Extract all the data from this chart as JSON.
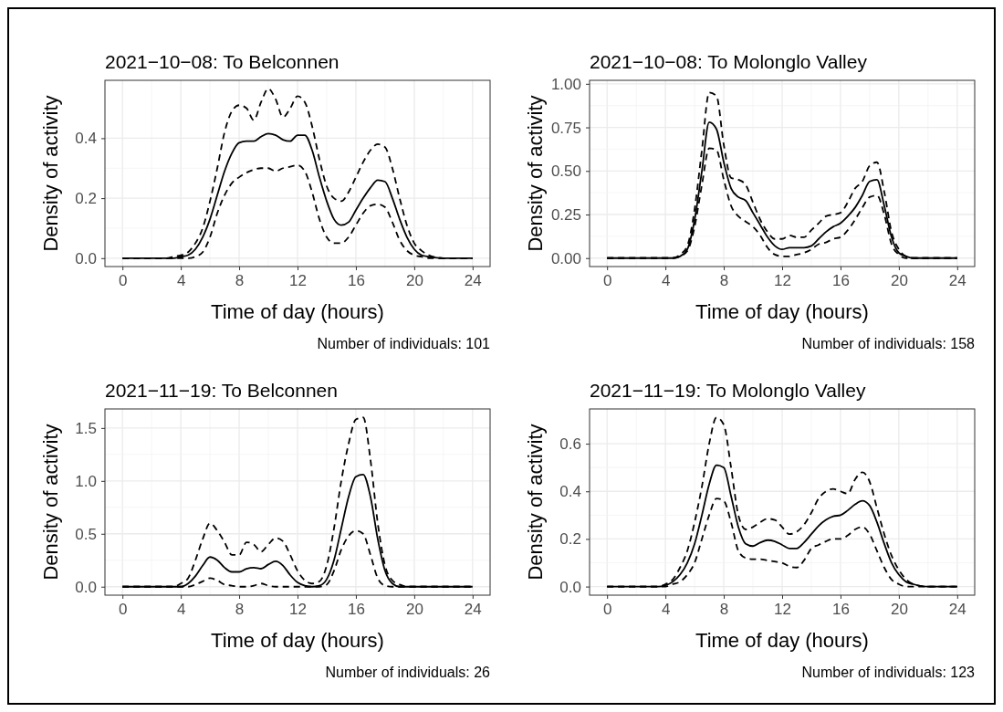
{
  "chart_data": [
    {
      "type": "line",
      "title": "2021−10−08: To Belconnen",
      "xlabel": "Time of day (hours)",
      "ylabel": "Density of activity",
      "annotations": [
        "Number of individuals: 101"
      ],
      "grid": true,
      "xlim": [
        -1.2,
        25.2
      ],
      "xticks": [
        0,
        4,
        8,
        12,
        16,
        20,
        24
      ],
      "ylim": [
        -0.028,
        0.593
      ],
      "yticks": [
        {
          "value": 0,
          "label": "0.0"
        },
        {
          "value": 0.2,
          "label": "0.2"
        },
        {
          "value": 0.4,
          "label": "0.4"
        }
      ],
      "x": [
        0,
        1,
        2,
        3,
        3.5,
        4,
        4.5,
        5,
        5.5,
        6,
        6.5,
        7,
        7.5,
        8,
        8.5,
        9,
        9.5,
        10,
        10.5,
        11,
        11.5,
        12,
        12.5,
        13,
        13.5,
        14,
        14.5,
        15,
        15.5,
        16,
        16.5,
        17,
        17.5,
        18,
        18.5,
        19,
        19.5,
        20,
        20.5,
        21,
        22,
        23,
        24
      ],
      "series": [
        {
          "color": "#000000",
          "line_style": "solid",
          "values": [
            0,
            0,
            0,
            0,
            0,
            0.005,
            0.01,
            0.03,
            0.07,
            0.13,
            0.21,
            0.29,
            0.35,
            0.385,
            0.39,
            0.39,
            0.405,
            0.415,
            0.41,
            0.395,
            0.39,
            0.41,
            0.41,
            0.36,
            0.27,
            0.19,
            0.13,
            0.11,
            0.12,
            0.16,
            0.2,
            0.235,
            0.26,
            0.255,
            0.2,
            0.13,
            0.07,
            0.03,
            0.01,
            0.005,
            0,
            0,
            0
          ]
        },
        {
          "color": "#000000",
          "line_style": "dashed",
          "values": [
            0,
            0,
            0,
            0,
            0.005,
            0.01,
            0.02,
            0.05,
            0.1,
            0.19,
            0.3,
            0.42,
            0.49,
            0.51,
            0.5,
            0.46,
            0.52,
            0.565,
            0.53,
            0.47,
            0.5,
            0.54,
            0.52,
            0.44,
            0.33,
            0.24,
            0.2,
            0.19,
            0.22,
            0.27,
            0.32,
            0.36,
            0.38,
            0.37,
            0.3,
            0.2,
            0.11,
            0.05,
            0.025,
            0.01,
            0,
            0,
            0
          ]
        },
        {
          "color": "#000000",
          "line_style": "dashed",
          "values": [
            0,
            0,
            0,
            0,
            0,
            0,
            0,
            0.005,
            0.02,
            0.07,
            0.15,
            0.21,
            0.25,
            0.27,
            0.285,
            0.295,
            0.3,
            0.3,
            0.29,
            0.3,
            0.305,
            0.31,
            0.29,
            0.22,
            0.13,
            0.07,
            0.05,
            0.05,
            0.07,
            0.11,
            0.15,
            0.175,
            0.18,
            0.17,
            0.12,
            0.06,
            0.025,
            0.01,
            0.005,
            0,
            0,
            0,
            0
          ]
        }
      ]
    },
    {
      "type": "line",
      "title": "2021−10−08: To Molonglo Valley",
      "xlabel": "Time of day (hours)",
      "ylabel": "Density of activity",
      "annotations": [
        "Number of individuals: 158"
      ],
      "grid": true,
      "xlim": [
        -1.2,
        25.2
      ],
      "xticks": [
        0,
        4,
        8,
        12,
        16,
        20,
        24
      ],
      "ylim": [
        -0.0485,
        1.02
      ],
      "yticks": [
        {
          "value": 0,
          "label": "0.00"
        },
        {
          "value": 0.25,
          "label": "0.25"
        },
        {
          "value": 0.5,
          "label": "0.50"
        },
        {
          "value": 0.75,
          "label": "0.75"
        },
        {
          "value": 1,
          "label": "1.00"
        }
      ],
      "x": [
        0,
        1,
        2,
        3,
        3.5,
        4,
        4.5,
        5,
        5.5,
        6,
        6.5,
        7,
        7.5,
        8,
        8.5,
        9,
        9.5,
        10,
        10.5,
        11,
        11.5,
        12,
        12.5,
        13,
        13.5,
        14,
        14.5,
        15,
        15.5,
        16,
        16.5,
        17,
        17.5,
        18,
        18.5,
        19,
        19.5,
        20,
        20.5,
        21,
        22,
        23,
        24
      ],
      "series": [
        {
          "color": "#000000",
          "line_style": "solid",
          "values": [
            0,
            0,
            0,
            0,
            0,
            0,
            0,
            0.01,
            0.05,
            0.22,
            0.5,
            0.78,
            0.74,
            0.55,
            0.4,
            0.35,
            0.33,
            0.26,
            0.19,
            0.12,
            0.07,
            0.05,
            0.06,
            0.06,
            0.06,
            0.07,
            0.11,
            0.15,
            0.18,
            0.2,
            0.24,
            0.29,
            0.36,
            0.44,
            0.45,
            0.3,
            0.12,
            0.03,
            0.01,
            0,
            0,
            0,
            0
          ]
        },
        {
          "color": "#000000",
          "line_style": "dashed",
          "values": [
            0,
            0,
            0,
            0,
            0,
            0,
            0,
            0.02,
            0.07,
            0.28,
            0.62,
            0.95,
            0.93,
            0.65,
            0.46,
            0.45,
            0.42,
            0.32,
            0.22,
            0.15,
            0.11,
            0.11,
            0.13,
            0.12,
            0.12,
            0.16,
            0.2,
            0.24,
            0.25,
            0.26,
            0.32,
            0.4,
            0.44,
            0.53,
            0.55,
            0.38,
            0.15,
            0.05,
            0.01,
            0,
            0,
            0,
            0
          ]
        },
        {
          "color": "#000000",
          "line_style": "dashed",
          "values": [
            0,
            0,
            0,
            0,
            0,
            0,
            0,
            0.01,
            0.04,
            0.18,
            0.42,
            0.63,
            0.62,
            0.45,
            0.3,
            0.24,
            0.21,
            0.18,
            0.13,
            0.06,
            0.02,
            0.01,
            0.01,
            0.02,
            0.03,
            0.05,
            0.08,
            0.09,
            0.11,
            0.12,
            0.16,
            0.22,
            0.29,
            0.35,
            0.36,
            0.25,
            0.08,
            0.02,
            0,
            0,
            0,
            0,
            0
          ]
        }
      ]
    },
    {
      "type": "line",
      "title": "2021−11−19: To Belconnen",
      "xlabel": "Time of day (hours)",
      "ylabel": "Density of activity",
      "annotations": [
        "Number of individuals: 26"
      ],
      "grid": true,
      "xlim": [
        -1.2,
        25.2
      ],
      "xticks": [
        0,
        4,
        8,
        12,
        16,
        20,
        24
      ],
      "ylim": [
        -0.08,
        1.68
      ],
      "yticks": [
        {
          "value": 0,
          "label": "0.0"
        },
        {
          "value": 0.5,
          "label": "0.5"
        },
        {
          "value": 1,
          "label": "1.0"
        },
        {
          "value": 1.5,
          "label": "1.5"
        }
      ],
      "x": [
        0,
        1,
        2,
        3,
        3.5,
        4,
        4.5,
        5,
        5.5,
        6,
        6.5,
        7,
        7.5,
        8,
        8.5,
        9,
        9.5,
        10,
        10.5,
        11,
        11.5,
        12,
        12.5,
        13,
        13.5,
        14,
        14.5,
        15,
        15.5,
        16,
        16.5,
        17,
        17.5,
        18,
        18.5,
        19,
        19.5,
        20,
        20.5,
        21,
        22,
        23,
        24
      ],
      "series": [
        {
          "color": "#000000",
          "line_style": "solid",
          "values": [
            0,
            0,
            0,
            0,
            0,
            0,
            0.03,
            0.1,
            0.2,
            0.28,
            0.25,
            0.18,
            0.14,
            0.14,
            0.17,
            0.18,
            0.17,
            0.21,
            0.24,
            0.2,
            0.11,
            0.04,
            0.01,
            0,
            0.01,
            0.07,
            0.25,
            0.55,
            0.85,
            1.04,
            1.06,
            0.85,
            0.45,
            0.15,
            0.03,
            0,
            0,
            0,
            0,
            0,
            0,
            0,
            0
          ]
        },
        {
          "color": "#000000",
          "line_style": "dashed",
          "values": [
            0,
            0,
            0,
            0,
            0,
            0.03,
            0.08,
            0.25,
            0.45,
            0.6,
            0.53,
            0.42,
            0.3,
            0.3,
            0.42,
            0.4,
            0.33,
            0.4,
            0.46,
            0.43,
            0.3,
            0.15,
            0.06,
            0.03,
            0.05,
            0.2,
            0.55,
            1.0,
            1.35,
            1.58,
            1.6,
            1.2,
            0.6,
            0.2,
            0.06,
            0.02,
            0,
            0,
            0,
            0,
            0,
            0,
            0
          ]
        },
        {
          "color": "#000000",
          "line_style": "dashed",
          "values": [
            0,
            0,
            0,
            0,
            0,
            0,
            0,
            0.02,
            0.05,
            0.08,
            0.06,
            0.02,
            0.01,
            0,
            0,
            0.01,
            0.03,
            0.01,
            0,
            0,
            0,
            0,
            0,
            0,
            0,
            0.02,
            0.15,
            0.35,
            0.48,
            0.53,
            0.5,
            0.3,
            0.08,
            0.01,
            0,
            0,
            0,
            0,
            0,
            0,
            0,
            0,
            0
          ]
        }
      ]
    },
    {
      "type": "line",
      "title": "2021−11−19: To Molonglo Valley",
      "xlabel": "Time of day (hours)",
      "ylabel": "Density of activity",
      "annotations": [
        "Number of individuals: 123"
      ],
      "grid": true,
      "xlim": [
        -1.2,
        25.2
      ],
      "xticks": [
        0,
        4,
        8,
        12,
        16,
        20,
        24
      ],
      "ylim": [
        -0.036,
        0.746
      ],
      "yticks": [
        {
          "value": 0,
          "label": "0.0"
        },
        {
          "value": 0.2,
          "label": "0.2"
        },
        {
          "value": 0.4,
          "label": "0.4"
        },
        {
          "value": 0.6,
          "label": "0.6"
        }
      ],
      "x": [
        0,
        1,
        2,
        3,
        3.5,
        4,
        4.5,
        5,
        5.5,
        6,
        6.5,
        7,
        7.5,
        8,
        8.5,
        9,
        9.5,
        10,
        10.5,
        11,
        11.5,
        12,
        12.5,
        13,
        13.5,
        14,
        14.5,
        15,
        15.5,
        16,
        16.5,
        17,
        17.5,
        18,
        18.5,
        19,
        19.5,
        20,
        20.5,
        21,
        22,
        23,
        24
      ],
      "series": [
        {
          "color": "#000000",
          "line_style": "solid",
          "values": [
            0,
            0,
            0,
            0,
            0,
            0.005,
            0.02,
            0.05,
            0.1,
            0.18,
            0.3,
            0.43,
            0.51,
            0.5,
            0.38,
            0.25,
            0.18,
            0.17,
            0.185,
            0.195,
            0.19,
            0.175,
            0.16,
            0.16,
            0.185,
            0.22,
            0.255,
            0.28,
            0.295,
            0.3,
            0.32,
            0.345,
            0.36,
            0.34,
            0.27,
            0.18,
            0.1,
            0.05,
            0.02,
            0.01,
            0,
            0,
            0
          ]
        },
        {
          "color": "#000000",
          "line_style": "dashed",
          "values": [
            0,
            0,
            0,
            0,
            0,
            0.01,
            0.03,
            0.08,
            0.15,
            0.27,
            0.42,
            0.6,
            0.71,
            0.68,
            0.5,
            0.3,
            0.24,
            0.25,
            0.27,
            0.285,
            0.28,
            0.25,
            0.22,
            0.23,
            0.26,
            0.31,
            0.37,
            0.4,
            0.41,
            0.4,
            0.39,
            0.45,
            0.48,
            0.44,
            0.33,
            0.22,
            0.13,
            0.07,
            0.03,
            0.01,
            0,
            0,
            0
          ]
        },
        {
          "color": "#000000",
          "line_style": "dashed",
          "values": [
            0,
            0,
            0,
            0,
            0,
            0,
            0.01,
            0.02,
            0.05,
            0.1,
            0.2,
            0.3,
            0.37,
            0.36,
            0.27,
            0.15,
            0.12,
            0.115,
            0.115,
            0.11,
            0.105,
            0.1,
            0.085,
            0.08,
            0.11,
            0.16,
            0.175,
            0.19,
            0.2,
            0.2,
            0.215,
            0.24,
            0.25,
            0.22,
            0.15,
            0.08,
            0.03,
            0.01,
            0,
            0,
            0,
            0,
            0
          ]
        }
      ]
    }
  ]
}
